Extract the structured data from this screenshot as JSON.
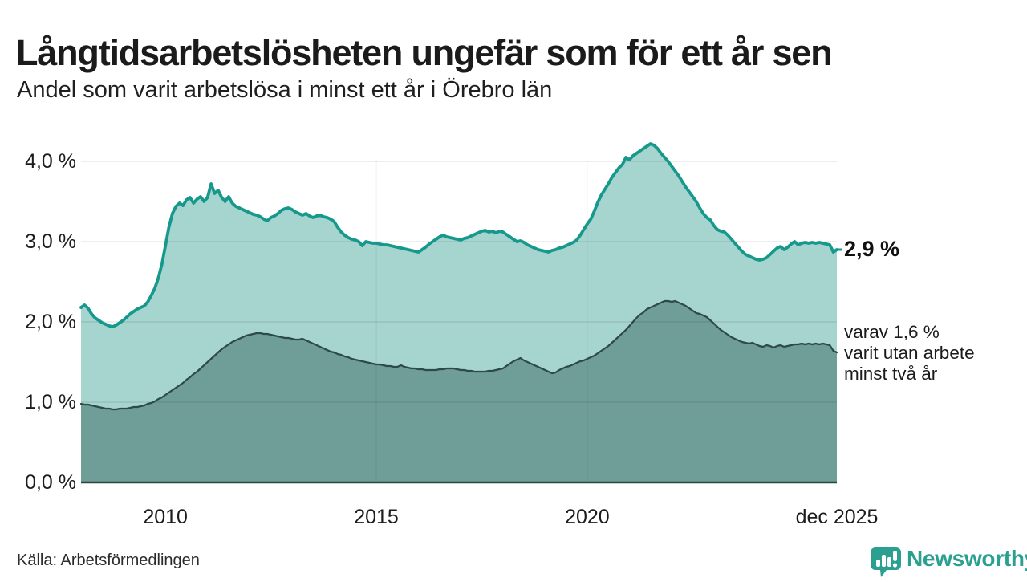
{
  "header": {
    "title": "Långtidsarbetslösheten ungefär som för ett år sen",
    "subtitle": "Andel som varit arbetslösa i minst ett år i Örebro län"
  },
  "chart_data": {
    "type": "area",
    "title": "Långtidsarbetslösheten ungefär som för ett år sen",
    "subtitle": "Andel som varit arbetslösa i minst ett år i Örebro län",
    "unit": "%",
    "x_start": "2008-01",
    "x_end": "2025-12",
    "x_frequency": "monthly",
    "ylim": [
      0,
      4.3
    ],
    "grid": "horizontal",
    "y_ticks": [
      {
        "label": "0,0 %",
        "value": 0
      },
      {
        "label": "1,0 %",
        "value": 1
      },
      {
        "label": "2,0 %",
        "value": 2
      },
      {
        "label": "3,0 %",
        "value": 3
      },
      {
        "label": "4,0 %",
        "value": 4
      }
    ],
    "x_ticks": [
      {
        "label": "2010",
        "t": 24
      },
      {
        "label": "2015",
        "t": 84
      },
      {
        "label": "2020",
        "t": 144
      },
      {
        "label": "dec 2025",
        "t": 215
      }
    ],
    "series": [
      {
        "name": "Arbetslösa minst ett år",
        "color": "#16998c",
        "fill": "#a6d4ce",
        "end_value": 2.9,
        "values": [
          2.18,
          2.21,
          2.17,
          2.1,
          2.05,
          2.02,
          1.99,
          1.97,
          1.95,
          1.94,
          1.96,
          1.99,
          2.02,
          2.06,
          2.1,
          2.13,
          2.16,
          2.18,
          2.2,
          2.25,
          2.33,
          2.42,
          2.55,
          2.72,
          2.95,
          3.18,
          3.35,
          3.44,
          3.48,
          3.45,
          3.52,
          3.55,
          3.48,
          3.53,
          3.56,
          3.5,
          3.55,
          3.72,
          3.6,
          3.64,
          3.55,
          3.5,
          3.56,
          3.48,
          3.44,
          3.42,
          3.4,
          3.38,
          3.36,
          3.34,
          3.33,
          3.31,
          3.28,
          3.26,
          3.3,
          3.32,
          3.35,
          3.39,
          3.41,
          3.42,
          3.4,
          3.37,
          3.35,
          3.33,
          3.35,
          3.32,
          3.3,
          3.32,
          3.33,
          3.31,
          3.3,
          3.28,
          3.25,
          3.18,
          3.12,
          3.08,
          3.05,
          3.03,
          3.02,
          3.0,
          2.95,
          3.0,
          2.99,
          2.98,
          2.98,
          2.97,
          2.96,
          2.96,
          2.95,
          2.94,
          2.93,
          2.92,
          2.91,
          2.9,
          2.89,
          2.88,
          2.87,
          2.9,
          2.93,
          2.97,
          3.0,
          3.03,
          3.06,
          3.08,
          3.06,
          3.05,
          3.04,
          3.03,
          3.02,
          3.04,
          3.05,
          3.07,
          3.09,
          3.11,
          3.13,
          3.14,
          3.12,
          3.13,
          3.11,
          3.13,
          3.12,
          3.09,
          3.06,
          3.03,
          3.0,
          3.01,
          2.99,
          2.96,
          2.94,
          2.92,
          2.9,
          2.89,
          2.88,
          2.87,
          2.89,
          2.9,
          2.92,
          2.93,
          2.95,
          2.97,
          2.99,
          3.02,
          3.08,
          3.15,
          3.22,
          3.28,
          3.38,
          3.49,
          3.58,
          3.65,
          3.72,
          3.8,
          3.86,
          3.92,
          3.96,
          4.05,
          4.02,
          4.07,
          4.1,
          4.13,
          4.16,
          4.19,
          4.22,
          4.2,
          4.16,
          4.1,
          4.05,
          4.0,
          3.94,
          3.88,
          3.82,
          3.75,
          3.68,
          3.62,
          3.56,
          3.5,
          3.42,
          3.35,
          3.3,
          3.27,
          3.2,
          3.15,
          3.13,
          3.12,
          3.08,
          3.03,
          2.98,
          2.93,
          2.88,
          2.84,
          2.82,
          2.8,
          2.78,
          2.77,
          2.78,
          2.8,
          2.84,
          2.88,
          2.92,
          2.94,
          2.9,
          2.93,
          2.97,
          3.0,
          2.96,
          2.98,
          2.99,
          2.98,
          2.99,
          2.98,
          2.99,
          2.98,
          2.97,
          2.96,
          2.87,
          2.9
        ]
      },
      {
        "name": "Varav utan arbete minst två år",
        "color": "#2d4a46",
        "fill": "#6f9d98",
        "end_value": 1.6,
        "values": [
          0.98,
          0.97,
          0.97,
          0.96,
          0.95,
          0.94,
          0.93,
          0.92,
          0.92,
          0.91,
          0.91,
          0.92,
          0.92,
          0.92,
          0.93,
          0.94,
          0.94,
          0.95,
          0.96,
          0.98,
          0.99,
          1.01,
          1.04,
          1.06,
          1.09,
          1.12,
          1.15,
          1.18,
          1.21,
          1.24,
          1.28,
          1.31,
          1.35,
          1.38,
          1.42,
          1.46,
          1.5,
          1.54,
          1.58,
          1.62,
          1.66,
          1.69,
          1.72,
          1.75,
          1.77,
          1.79,
          1.81,
          1.83,
          1.84,
          1.85,
          1.86,
          1.86,
          1.85,
          1.85,
          1.84,
          1.83,
          1.82,
          1.81,
          1.8,
          1.8,
          1.79,
          1.78,
          1.78,
          1.79,
          1.77,
          1.75,
          1.73,
          1.71,
          1.69,
          1.67,
          1.65,
          1.63,
          1.62,
          1.6,
          1.59,
          1.57,
          1.56,
          1.54,
          1.53,
          1.52,
          1.51,
          1.5,
          1.49,
          1.48,
          1.47,
          1.47,
          1.46,
          1.45,
          1.45,
          1.44,
          1.44,
          1.46,
          1.44,
          1.43,
          1.42,
          1.42,
          1.41,
          1.41,
          1.4,
          1.4,
          1.4,
          1.4,
          1.41,
          1.41,
          1.42,
          1.42,
          1.42,
          1.41,
          1.4,
          1.4,
          1.39,
          1.39,
          1.38,
          1.38,
          1.38,
          1.38,
          1.39,
          1.39,
          1.4,
          1.41,
          1.42,
          1.45,
          1.48,
          1.51,
          1.53,
          1.55,
          1.52,
          1.5,
          1.48,
          1.46,
          1.44,
          1.42,
          1.4,
          1.38,
          1.36,
          1.37,
          1.4,
          1.42,
          1.44,
          1.45,
          1.47,
          1.49,
          1.51,
          1.52,
          1.54,
          1.56,
          1.58,
          1.61,
          1.64,
          1.67,
          1.7,
          1.74,
          1.78,
          1.82,
          1.86,
          1.9,
          1.95,
          2.0,
          2.05,
          2.09,
          2.12,
          2.16,
          2.18,
          2.2,
          2.22,
          2.24,
          2.26,
          2.26,
          2.25,
          2.26,
          2.24,
          2.22,
          2.2,
          2.17,
          2.14,
          2.11,
          2.1,
          2.08,
          2.06,
          2.02,
          1.98,
          1.94,
          1.9,
          1.87,
          1.84,
          1.81,
          1.79,
          1.77,
          1.75,
          1.74,
          1.73,
          1.74,
          1.72,
          1.7,
          1.69,
          1.71,
          1.7,
          1.68,
          1.7,
          1.71,
          1.69,
          1.7,
          1.71,
          1.72,
          1.72,
          1.73,
          1.72,
          1.73,
          1.72,
          1.73,
          1.72,
          1.73,
          1.72,
          1.71,
          1.64,
          1.62
        ]
      }
    ],
    "annotations": {
      "end_value_label": "2,9 %",
      "sub_lines": [
        "varav 1,6 %",
        "varit utan arbete",
        "minst två år"
      ]
    }
  },
  "footer": {
    "source": "Källa: Arbetsförmedlingen",
    "brand": "Newsworthy"
  },
  "colors": {
    "line_1yr": "#16998c",
    "fill_1yr": "#a6d4ce",
    "line_2yr": "#2d4a46",
    "fill_2yr": "#6f9d98",
    "baseline": "#2b4743",
    "gridline": "#e6e6e6",
    "brand_teal": "#2ba091"
  }
}
